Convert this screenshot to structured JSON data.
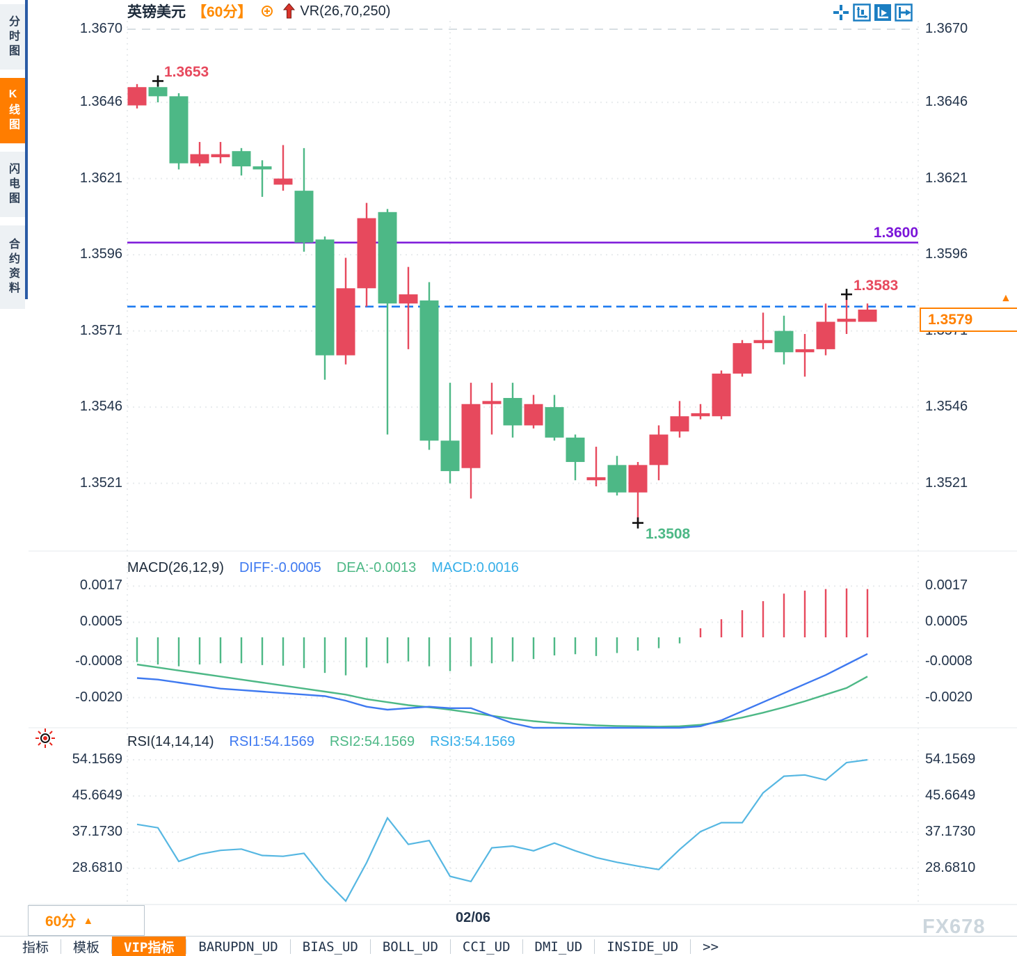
{
  "colors": {
    "up": "#e7495d",
    "down": "#4db886",
    "purple_line": "#7b16d9",
    "dashed_line": "#1576f0",
    "accent_orange": "#ff7d00",
    "tag_orange": "#ff8000",
    "diff_blue": "#3e79f0",
    "dea_green": "#4db886",
    "macd_cyan": "#35aee8",
    "rsi_line": "#56b7e2",
    "icon_blue": "#1b7ec2",
    "text_navy": "#22334a"
  },
  "sidebar": {
    "items": [
      {
        "label": "分时图",
        "active": false
      },
      {
        "label": "K线图",
        "active": true
      },
      {
        "label": "闪电图",
        "active": false
      },
      {
        "label": "合约资料",
        "active": false
      }
    ]
  },
  "header": {
    "symbol": "英镑美元",
    "period": "【60分】",
    "icons": [
      "circle-plus-icon",
      "red-up-arrow-icon"
    ],
    "indicator": "VR(26,70,250)"
  },
  "toolbar": {
    "icons": [
      "pan-tool-icon",
      "axis-zoom-icon",
      "auto-play-icon",
      "page-forward-icon"
    ]
  },
  "price_pane": {
    "axis_labels": [
      "1.3670",
      "1.3646",
      "1.3621",
      "1.3596",
      "1.3571",
      "1.3546",
      "1.3521"
    ],
    "annotations": {
      "swing_high": "1.3653",
      "swing_low": "1.3508",
      "recent_high": "1.3583",
      "hline_label": "1.3600",
      "last_price": "1.3579"
    }
  },
  "macd_pane": {
    "title": "MACD(26,12,9)",
    "diff_label": "DIFF:-0.0005",
    "dea_label": "DEA:-0.0013",
    "macd_label": "MACD:0.0016",
    "axis_labels": [
      "0.0017",
      "0.0005",
      "-0.0008",
      "-0.0020"
    ]
  },
  "rsi_pane": {
    "title": "RSI(14,14,14)",
    "rsi1_label": "RSI1:54.1569",
    "rsi2_label": "RSI2:54.1569",
    "rsi3_label": "RSI3:54.1569",
    "axis_labels": [
      "54.1569",
      "45.6649",
      "37.1730",
      "28.6810"
    ]
  },
  "footer": {
    "timeframe": "60分",
    "timeframe_arrow": "▲",
    "date_label": "02/06",
    "watermark": "FX678",
    "tabs": [
      {
        "label": "指标",
        "active": false
      },
      {
        "label": "模板",
        "active": false
      },
      {
        "label": "VIP指标",
        "active": true
      },
      {
        "label": "BARUPDN_UD",
        "active": false
      },
      {
        "label": "BIAS_UD",
        "active": false
      },
      {
        "label": "BOLL_UD",
        "active": false
      },
      {
        "label": "CCI_UD",
        "active": false
      },
      {
        "label": "DMI_UD",
        "active": false
      },
      {
        "label": "INSIDE_UD",
        "active": false
      },
      {
        "label": ">>",
        "active": false
      }
    ]
  },
  "chart_data": {
    "type": "candlestick",
    "symbol": "GBPUSD",
    "interval": "60min",
    "price": {
      "ylim": [
        1.35,
        1.3672
      ],
      "gridlines": [
        1.367,
        1.3646,
        1.3621,
        1.3596,
        1.3571,
        1.3546,
        1.3521
      ],
      "hline": 1.36,
      "current_line": 1.3579,
      "session_break_x_index": 15,
      "candles_ohlc": [
        [
          1.3645,
          1.3652,
          1.3644,
          1.3651
        ],
        [
          1.3651,
          1.3653,
          1.3646,
          1.3648
        ],
        [
          1.3648,
          1.3649,
          1.3624,
          1.3626
        ],
        [
          1.3626,
          1.3633,
          1.3625,
          1.3629
        ],
        [
          1.3628,
          1.3633,
          1.3626,
          1.3629
        ],
        [
          1.363,
          1.3631,
          1.3622,
          1.3625
        ],
        [
          1.3625,
          1.3627,
          1.3615,
          1.3624
        ],
        [
          1.3619,
          1.3632,
          1.3617,
          1.3621
        ],
        [
          1.3617,
          1.3631,
          1.3597,
          1.36
        ],
        [
          1.3601,
          1.3602,
          1.3555,
          1.3563
        ],
        [
          1.3563,
          1.3595,
          1.356,
          1.3585
        ],
        [
          1.3585,
          1.3613,
          1.3579,
          1.3608
        ],
        [
          1.361,
          1.3611,
          1.3537,
          1.358
        ],
        [
          1.358,
          1.3592,
          1.3565,
          1.3583
        ],
        [
          1.3581,
          1.3587,
          1.3532,
          1.3535
        ],
        [
          1.3535,
          1.3554,
          1.3521,
          1.3525
        ],
        [
          1.3526,
          1.3554,
          1.3516,
          1.3547
        ],
        [
          1.3547,
          1.3554,
          1.3537,
          1.3548
        ],
        [
          1.3549,
          1.3554,
          1.3536,
          1.354
        ],
        [
          1.354,
          1.355,
          1.3539,
          1.3547
        ],
        [
          1.3546,
          1.355,
          1.3535,
          1.3536
        ],
        [
          1.3536,
          1.3537,
          1.3522,
          1.3528
        ],
        [
          1.3522,
          1.3533,
          1.352,
          1.3523
        ],
        [
          1.3527,
          1.353,
          1.3517,
          1.3518
        ],
        [
          1.3518,
          1.3528,
          1.3508,
          1.3527
        ],
        [
          1.3527,
          1.354,
          1.3522,
          1.3537
        ],
        [
          1.3538,
          1.3548,
          1.3536,
          1.3543
        ],
        [
          1.3543,
          1.3547,
          1.3542,
          1.3544
        ],
        [
          1.3543,
          1.3558,
          1.3542,
          1.3557
        ],
        [
          1.3557,
          1.3568,
          1.3556,
          1.3567
        ],
        [
          1.3567,
          1.3577,
          1.3565,
          1.3568
        ],
        [
          1.3571,
          1.3576,
          1.356,
          1.3564
        ],
        [
          1.3564,
          1.357,
          1.3556,
          1.3565
        ],
        [
          1.3565,
          1.358,
          1.3563,
          1.3574
        ],
        [
          1.3574,
          1.3583,
          1.357,
          1.3575
        ],
        [
          1.3574,
          1.358,
          1.3574,
          1.3578
        ]
      ],
      "markers": [
        {
          "index": 1,
          "price": 1.3653,
          "type": "cross"
        },
        {
          "index": 24,
          "price": 1.3508,
          "type": "cross"
        },
        {
          "index": 34,
          "price": 1.3583,
          "type": "cross"
        }
      ]
    },
    "macd": {
      "params": [
        26,
        12,
        9
      ],
      "ylim": [
        -0.003,
        0.0019
      ],
      "gridlines": [
        0.0017,
        0.0005,
        -0.0008,
        -0.002
      ],
      "diff_now": -0.0005,
      "dea_now": -0.0013,
      "macd_now": 0.0016,
      "histogram": [
        -0.00082,
        -0.0009,
        -0.00096,
        -0.0009,
        -0.00086,
        -0.00086,
        -0.00092,
        -0.00094,
        -0.00102,
        -0.00118,
        -0.00126,
        -0.001,
        -0.00086,
        -0.0008,
        -0.00096,
        -0.00112,
        -0.00096,
        -0.00086,
        -0.0008,
        -0.00072,
        -0.0006,
        -0.00056,
        -0.00062,
        -0.00052,
        -0.00044,
        -0.00036,
        -0.0002,
        0.0003,
        0.0006,
        0.0009,
        0.0012,
        0.00145,
        0.00155,
        0.0016,
        0.00162,
        0.0016
      ],
      "diff": [
        -0.00135,
        -0.0014,
        -0.0015,
        -0.0016,
        -0.0017,
        -0.00175,
        -0.0018,
        -0.00185,
        -0.0019,
        -0.00195,
        -0.0021,
        -0.0023,
        -0.0024,
        -0.00235,
        -0.0023,
        -0.00235,
        -0.00235,
        -0.0026,
        -0.00285,
        -0.003,
        -0.003,
        -0.003,
        -0.003,
        -0.003,
        -0.003,
        -0.003,
        -0.003,
        -0.00295,
        -0.00275,
        -0.00245,
        -0.00215,
        -0.00185,
        -0.00155,
        -0.00125,
        -0.0009,
        -0.00055
      ],
      "dea": [
        -0.0009,
        -0.001,
        -0.0011,
        -0.0012,
        -0.0013,
        -0.0014,
        -0.0015,
        -0.0016,
        -0.0017,
        -0.0018,
        -0.0019,
        -0.00205,
        -0.00215,
        -0.00225,
        -0.00232,
        -0.0024,
        -0.0025,
        -0.0026,
        -0.0027,
        -0.00278,
        -0.00284,
        -0.00288,
        -0.00292,
        -0.00294,
        -0.00295,
        -0.00296,
        -0.00295,
        -0.0029,
        -0.0028,
        -0.00266,
        -0.0025,
        -0.00232,
        -0.00212,
        -0.0019,
        -0.00168,
        -0.0013
      ]
    },
    "rsi": {
      "params": [
        14,
        14,
        14
      ],
      "ylim": [
        20.0,
        56.0
      ],
      "gridlines": [
        54.1569,
        45.6649,
        37.173,
        28.681
      ],
      "rsi_now": 54.1569,
      "values": [
        39.0,
        38.2,
        30.3,
        32.0,
        32.9,
        33.2,
        31.7,
        31.5,
        32.2,
        26.0,
        21.0,
        30.0,
        40.5,
        34.3,
        35.2,
        26.8,
        25.6,
        33.5,
        33.9,
        32.8,
        34.6,
        32.8,
        31.2,
        30.1,
        29.2,
        28.4,
        33.1,
        37.3,
        39.4,
        39.4,
        46.4,
        50.3,
        50.6,
        49.4,
        53.5,
        54.1569
      ]
    }
  }
}
